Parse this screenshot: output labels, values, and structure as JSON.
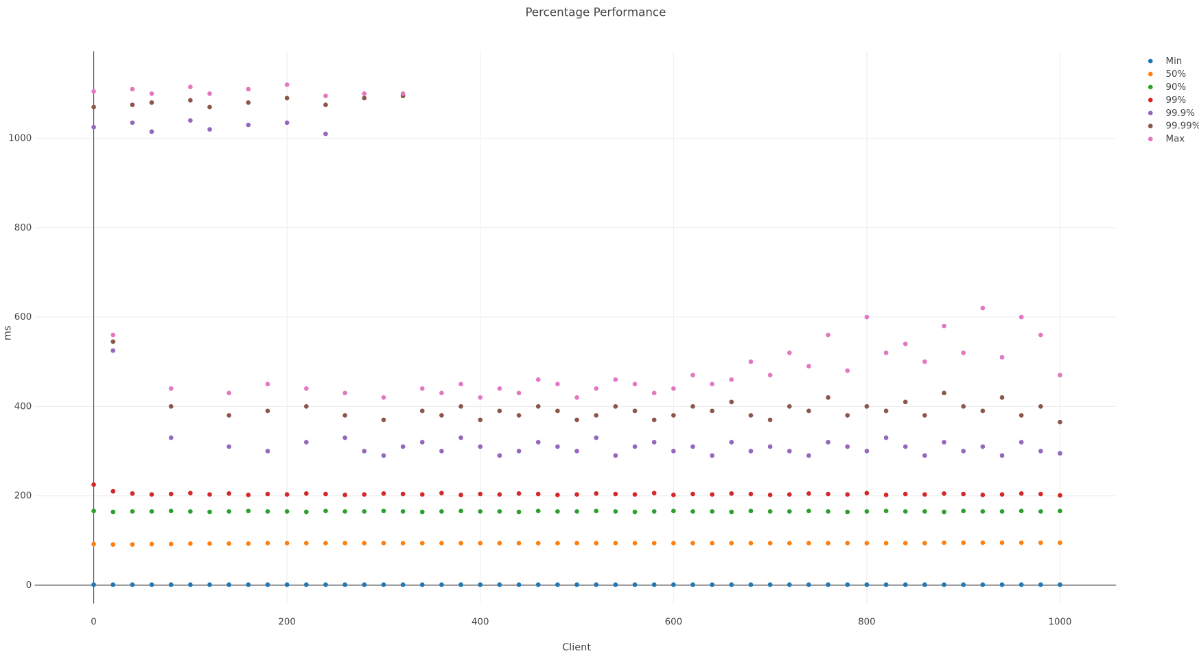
{
  "chart_data": {
    "type": "scatter",
    "title": "Percentage Performance",
    "xlabel": "Client",
    "ylabel": "ms",
    "xlim": [
      -61,
      1058
    ],
    "ylim": [
      -41,
      1195
    ],
    "xticks": [
      0,
      200,
      400,
      600,
      800,
      1000
    ],
    "yticks": [
      0,
      200,
      400,
      600,
      800,
      1000
    ],
    "grid": true,
    "legend": "upper right",
    "x": [
      0,
      20,
      40,
      60,
      80,
      100,
      120,
      140,
      160,
      180,
      200,
      220,
      240,
      260,
      280,
      300,
      320,
      340,
      360,
      380,
      400,
      420,
      440,
      460,
      480,
      500,
      520,
      540,
      560,
      580,
      600,
      620,
      640,
      660,
      680,
      700,
      720,
      740,
      760,
      780,
      800,
      820,
      840,
      860,
      880,
      900,
      920,
      940,
      960,
      980,
      1000
    ],
    "series": [
      {
        "name": "Min",
        "color": "#1f77b4",
        "values": [
          1,
          1,
          1,
          1,
          1,
          1,
          1,
          1,
          1,
          1,
          1,
          1,
          1,
          1,
          1,
          1,
          1,
          1,
          1,
          1,
          1,
          1,
          1,
          1,
          1,
          1,
          1,
          1,
          1,
          1,
          1,
          1,
          1,
          1,
          1,
          1,
          1,
          1,
          1,
          1,
          1,
          1,
          1,
          1,
          1,
          1,
          1,
          1,
          1,
          1,
          1
        ]
      },
      {
        "name": "50%",
        "color": "#ff7f0e",
        "values": [
          92,
          91,
          91,
          92,
          92,
          93,
          93,
          93,
          93,
          94,
          94,
          94,
          94,
          94,
          94,
          94,
          94,
          94,
          94,
          94,
          94,
          94,
          94,
          94,
          94,
          94,
          94,
          94,
          94,
          94,
          94,
          94,
          94,
          94,
          94,
          94,
          94,
          94,
          94,
          94,
          94,
          94,
          94,
          94,
          95,
          95,
          95,
          95,
          95,
          95,
          95
        ]
      },
      {
        "name": "90%",
        "color": "#2ca02c",
        "values": [
          166,
          164,
          165,
          165,
          166,
          165,
          164,
          165,
          166,
          165,
          165,
          164,
          166,
          165,
          165,
          166,
          165,
          164,
          165,
          166,
          165,
          165,
          164,
          166,
          165,
          165,
          166,
          165,
          164,
          165,
          166,
          165,
          165,
          164,
          166,
          165,
          165,
          166,
          165,
          164,
          165,
          166,
          165,
          165,
          164,
          166,
          165,
          165,
          166,
          165,
          166
        ]
      },
      {
        "name": "99%",
        "color": "#d62728",
        "values": [
          225,
          210,
          205,
          203,
          204,
          206,
          203,
          205,
          202,
          204,
          203,
          205,
          204,
          202,
          203,
          205,
          204,
          203,
          206,
          202,
          204,
          203,
          205,
          204,
          202,
          203,
          205,
          204,
          203,
          206,
          202,
          204,
          203,
          205,
          204,
          202,
          203,
          205,
          204,
          203,
          206,
          202,
          204,
          203,
          205,
          204,
          202,
          203,
          205,
          204,
          201
        ]
      },
      {
        "name": "99.9%",
        "color": "#9467bd",
        "values": [
          1025,
          525,
          1035,
          1015,
          330,
          1040,
          1020,
          310,
          1030,
          300,
          1035,
          320,
          1010,
          330,
          300,
          290,
          310,
          320,
          300,
          330,
          310,
          290,
          300,
          320,
          310,
          300,
          330,
          290,
          310,
          320,
          300,
          310,
          290,
          320,
          300,
          310,
          300,
          290,
          320,
          310,
          300,
          330,
          310,
          290,
          320,
          300,
          310,
          290,
          320,
          300,
          295
        ]
      },
      {
        "name": "99.99%",
        "color": "#8c564b",
        "values": [
          1070,
          545,
          1075,
          1080,
          400,
          1085,
          1070,
          380,
          1080,
          390,
          1090,
          400,
          1075,
          380,
          1090,
          370,
          1095,
          390,
          380,
          400,
          370,
          390,
          380,
          400,
          390,
          370,
          380,
          400,
          390,
          370,
          380,
          400,
          390,
          410,
          380,
          370,
          400,
          390,
          420,
          380,
          400,
          390,
          410,
          380,
          430,
          400,
          390,
          420,
          380,
          400,
          365
        ]
      },
      {
        "name": "Max",
        "color": "#e377c2",
        "values": [
          1105,
          560,
          1110,
          1100,
          440,
          1115,
          1100,
          430,
          1110,
          450,
          1120,
          440,
          1095,
          430,
          1100,
          420,
          1100,
          440,
          430,
          450,
          420,
          440,
          430,
          460,
          450,
          420,
          440,
          460,
          450,
          430,
          440,
          470,
          450,
          460,
          500,
          470,
          520,
          490,
          560,
          480,
          600,
          520,
          540,
          500,
          580,
          520,
          620,
          510,
          600,
          560,
          470
        ]
      }
    ]
  }
}
